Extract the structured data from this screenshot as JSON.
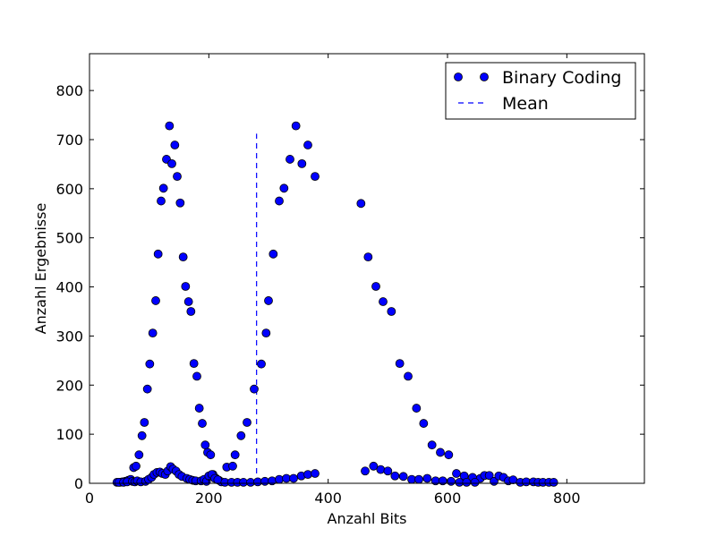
{
  "chart_data": {
    "type": "scatter",
    "title": "",
    "xlabel": "Anzahl Bits",
    "ylabel": "Anzahl Ergebnisse",
    "xlim": [
      0,
      930
    ],
    "ylim": [
      0,
      875
    ],
    "xticks": [
      0,
      200,
      400,
      600,
      800
    ],
    "yticks": [
      0,
      100,
      200,
      300,
      400,
      500,
      600,
      700,
      800
    ],
    "grid": false,
    "legend": {
      "position": "top-right",
      "entries": [
        {
          "label": "Binary Coding",
          "marker": "circle",
          "color": "#0000ff"
        },
        {
          "label": "Mean",
          "style": "dashed",
          "color": "#0000ff"
        }
      ]
    },
    "series": [
      {
        "name": "Binary Coding",
        "color": "#0000ff",
        "marker": "circle",
        "x": [
          46,
          51,
          55,
          60,
          65,
          69,
          74,
          78,
          83,
          88,
          92,
          97,
          101,
          106,
          111,
          115,
          120,
          124,
          129,
          134,
          138,
          143,
          147,
          152,
          157,
          161,
          166,
          170,
          175,
          180,
          184,
          189,
          194,
          198,
          203,
          207,
          212,
          217,
          221,
          49,
          57,
          63,
          72,
          76,
          80,
          86,
          94,
          99,
          104,
          108,
          113,
          118,
          122,
          127,
          131,
          136,
          140,
          145,
          150,
          155,
          163,
          168,
          173,
          178,
          187,
          192,
          196,
          200,
          205,
          210,
          215,
          230,
          240,
          227,
          238,
          248,
          258,
          270,
          282,
          294,
          306,
          318,
          330,
          342,
          355,
          366,
          378,
          244,
          254,
          264,
          276,
          288,
          296,
          300,
          308,
          318,
          326,
          336,
          346,
          356,
          366,
          378,
          455,
          467,
          480,
          492,
          506,
          520,
          534,
          548,
          560,
          574,
          588,
          602,
          615,
          628,
          642,
          655,
          462,
          476,
          488,
          500,
          512,
          526,
          540,
          552,
          566,
          580,
          592,
          606,
          620,
          632,
          646,
          662,
          670,
          678,
          686,
          694,
          702,
          710,
          722,
          732,
          744,
          752,
          760,
          770,
          778
        ],
        "y": [
          2,
          2,
          3,
          4,
          6,
          8,
          32,
          35,
          58,
          97,
          124,
          192,
          243,
          306,
          372,
          467,
          575,
          601,
          660,
          728,
          651,
          689,
          625,
          571,
          461,
          401,
          370,
          350,
          244,
          218,
          153,
          122,
          78,
          63,
          58,
          18,
          10,
          6,
          3,
          2,
          2,
          3,
          4,
          3,
          5,
          3,
          4,
          8,
          12,
          18,
          22,
          23,
          20,
          18,
          25,
          34,
          29,
          25,
          18,
          14,
          10,
          8,
          6,
          5,
          5,
          8,
          4,
          15,
          18,
          10,
          7,
          33,
          35,
          2,
          2,
          2,
          2,
          2,
          3,
          4,
          5,
          8,
          10,
          10,
          15,
          18,
          20,
          58,
          97,
          124,
          192,
          243,
          306,
          372,
          467,
          575,
          601,
          660,
          728,
          651,
          689,
          625,
          570,
          461,
          401,
          370,
          350,
          244,
          218,
          153,
          122,
          78,
          63,
          58,
          20,
          15,
          12,
          10,
          25,
          35,
          28,
          25,
          15,
          14,
          8,
          8,
          10,
          5,
          5,
          4,
          2,
          2,
          2,
          16,
          16,
          4,
          15,
          12,
          5,
          7,
          2,
          3,
          3,
          2,
          2,
          2,
          2
        ],
        "note_unused": ""
      },
      {
        "name": "Mean",
        "type": "vline",
        "color": "#0000ff",
        "x": 280,
        "y_range": [
          0,
          712
        ]
      }
    ]
  }
}
